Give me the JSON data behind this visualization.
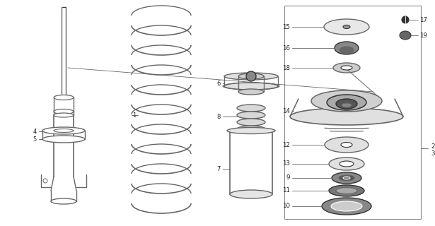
{
  "bg_color": "#ffffff",
  "lc": "#666666",
  "dc": "#333333",
  "fig_w": 6.15,
  "fig_h": 3.2,
  "dpi": 100
}
